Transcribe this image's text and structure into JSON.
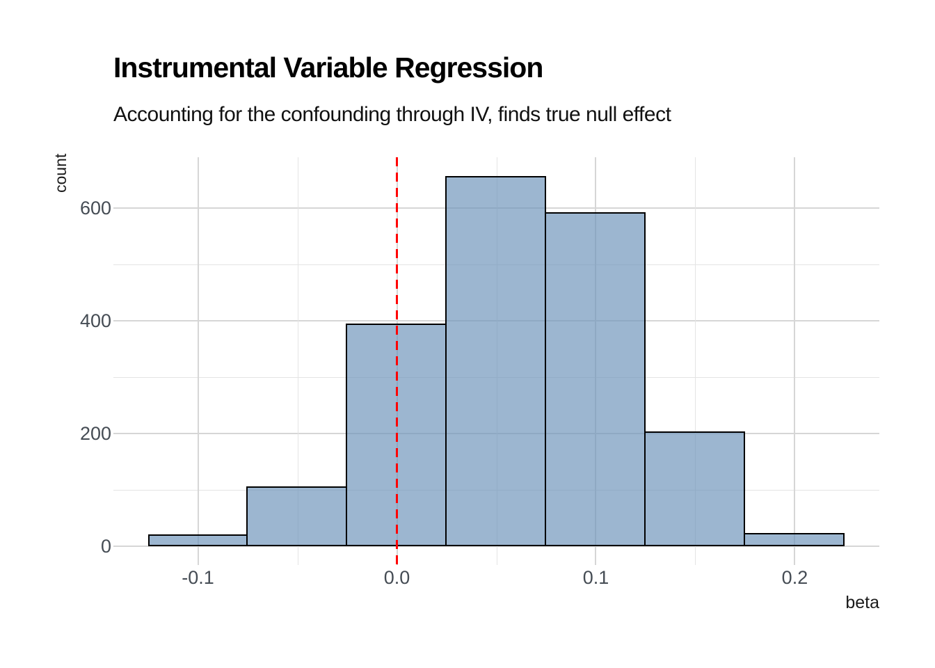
{
  "chart_data": {
    "type": "bar",
    "subtype": "histogram",
    "title": "Instrumental Variable Regression",
    "subtitle": "Accounting for the confounding through IV, finds true null effect",
    "xlabel": "beta",
    "ylabel": "count",
    "bin_width": 0.05,
    "bins": [
      {
        "x0": -0.125,
        "x1": -0.075,
        "count": 21
      },
      {
        "x0": -0.075,
        "x1": -0.025,
        "count": 106
      },
      {
        "x0": -0.025,
        "x1": 0.025,
        "count": 395
      },
      {
        "x0": 0.025,
        "x1": 0.075,
        "count": 657
      },
      {
        "x0": 0.075,
        "x1": 0.125,
        "count": 592
      },
      {
        "x0": 0.125,
        "x1": 0.175,
        "count": 204
      },
      {
        "x0": 0.175,
        "x1": 0.225,
        "count": 23
      }
    ],
    "x_ticks": [
      {
        "value": -0.1,
        "label": "-0.1"
      },
      {
        "value": 0.0,
        "label": "0.0"
      },
      {
        "value": 0.1,
        "label": "0.1"
      },
      {
        "value": 0.2,
        "label": "0.2"
      }
    ],
    "y_ticks": [
      {
        "value": 0,
        "label": "0"
      },
      {
        "value": 200,
        "label": "200"
      },
      {
        "value": 400,
        "label": "400"
      },
      {
        "value": 600,
        "label": "600"
      }
    ],
    "x_minor_gridlines": [
      -0.05,
      0.05,
      0.15
    ],
    "y_minor_gridlines": [
      100,
      300,
      500
    ],
    "xlim": [
      -0.1425,
      0.2425
    ],
    "ylim": [
      0,
      690
    ],
    "grid": true,
    "legend": false,
    "vline": {
      "x": 0.0,
      "style": "dashed",
      "color": "#ff0000"
    },
    "colors": {
      "bar_fill": "#9cb6d0",
      "bar_border": "#000000",
      "grid_major": "#d6d6d6",
      "grid_minor": "#e4e4e4",
      "tick_text": "#454c54",
      "axis_title_text": "#1a1a1a",
      "title_text": "#000000",
      "background": "#ffffff"
    }
  }
}
